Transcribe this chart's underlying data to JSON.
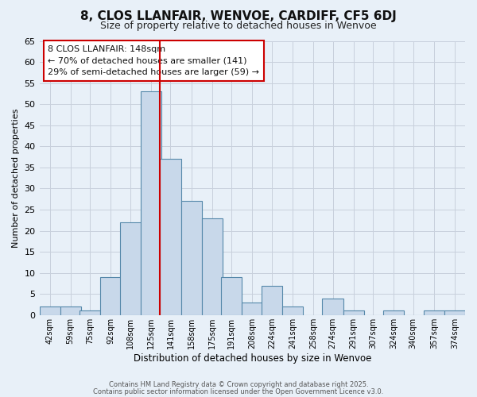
{
  "title": "8, CLOS LLANFAIR, WENVOE, CARDIFF, CF5 6DJ",
  "subtitle": "Size of property relative to detached houses in Wenvoe",
  "xlabel": "Distribution of detached houses by size in Wenvoe",
  "ylabel": "Number of detached properties",
  "bin_labels": [
    "42sqm",
    "59sqm",
    "75sqm",
    "92sqm",
    "108sqm",
    "125sqm",
    "141sqm",
    "158sqm",
    "175sqm",
    "191sqm",
    "208sqm",
    "224sqm",
    "241sqm",
    "258sqm",
    "274sqm",
    "291sqm",
    "307sqm",
    "324sqm",
    "340sqm",
    "357sqm",
    "374sqm"
  ],
  "bin_edges": [
    42,
    59,
    75,
    92,
    108,
    125,
    141,
    158,
    175,
    191,
    208,
    224,
    241,
    258,
    274,
    291,
    307,
    324,
    340,
    357,
    374
  ],
  "bar_heights": [
    2,
    2,
    1,
    9,
    22,
    53,
    37,
    27,
    23,
    9,
    3,
    7,
    2,
    0,
    4,
    1,
    0,
    1,
    0,
    1,
    1
  ],
  "bar_color": "#c8d8ea",
  "bar_edge_color": "#5588aa",
  "vline_color": "#cc0000",
  "annotation_lines": [
    "8 CLOS LLANFAIR: 148sqm",
    "← 70% of detached houses are smaller (141)",
    "29% of semi-detached houses are larger (59) →"
  ],
  "annotation_box_edge": "#cc0000",
  "ylim": [
    0,
    65
  ],
  "yticks": [
    0,
    5,
    10,
    15,
    20,
    25,
    30,
    35,
    40,
    45,
    50,
    55,
    60,
    65
  ],
  "footer1": "Contains HM Land Registry data © Crown copyright and database right 2025.",
  "footer2": "Contains public sector information licensed under the Open Government Licence v3.0.",
  "bg_color": "#e8f0f8",
  "grid_color": "#c8d0dc",
  "title_fontsize": 11,
  "subtitle_fontsize": 9,
  "ann_fontsize": 8
}
